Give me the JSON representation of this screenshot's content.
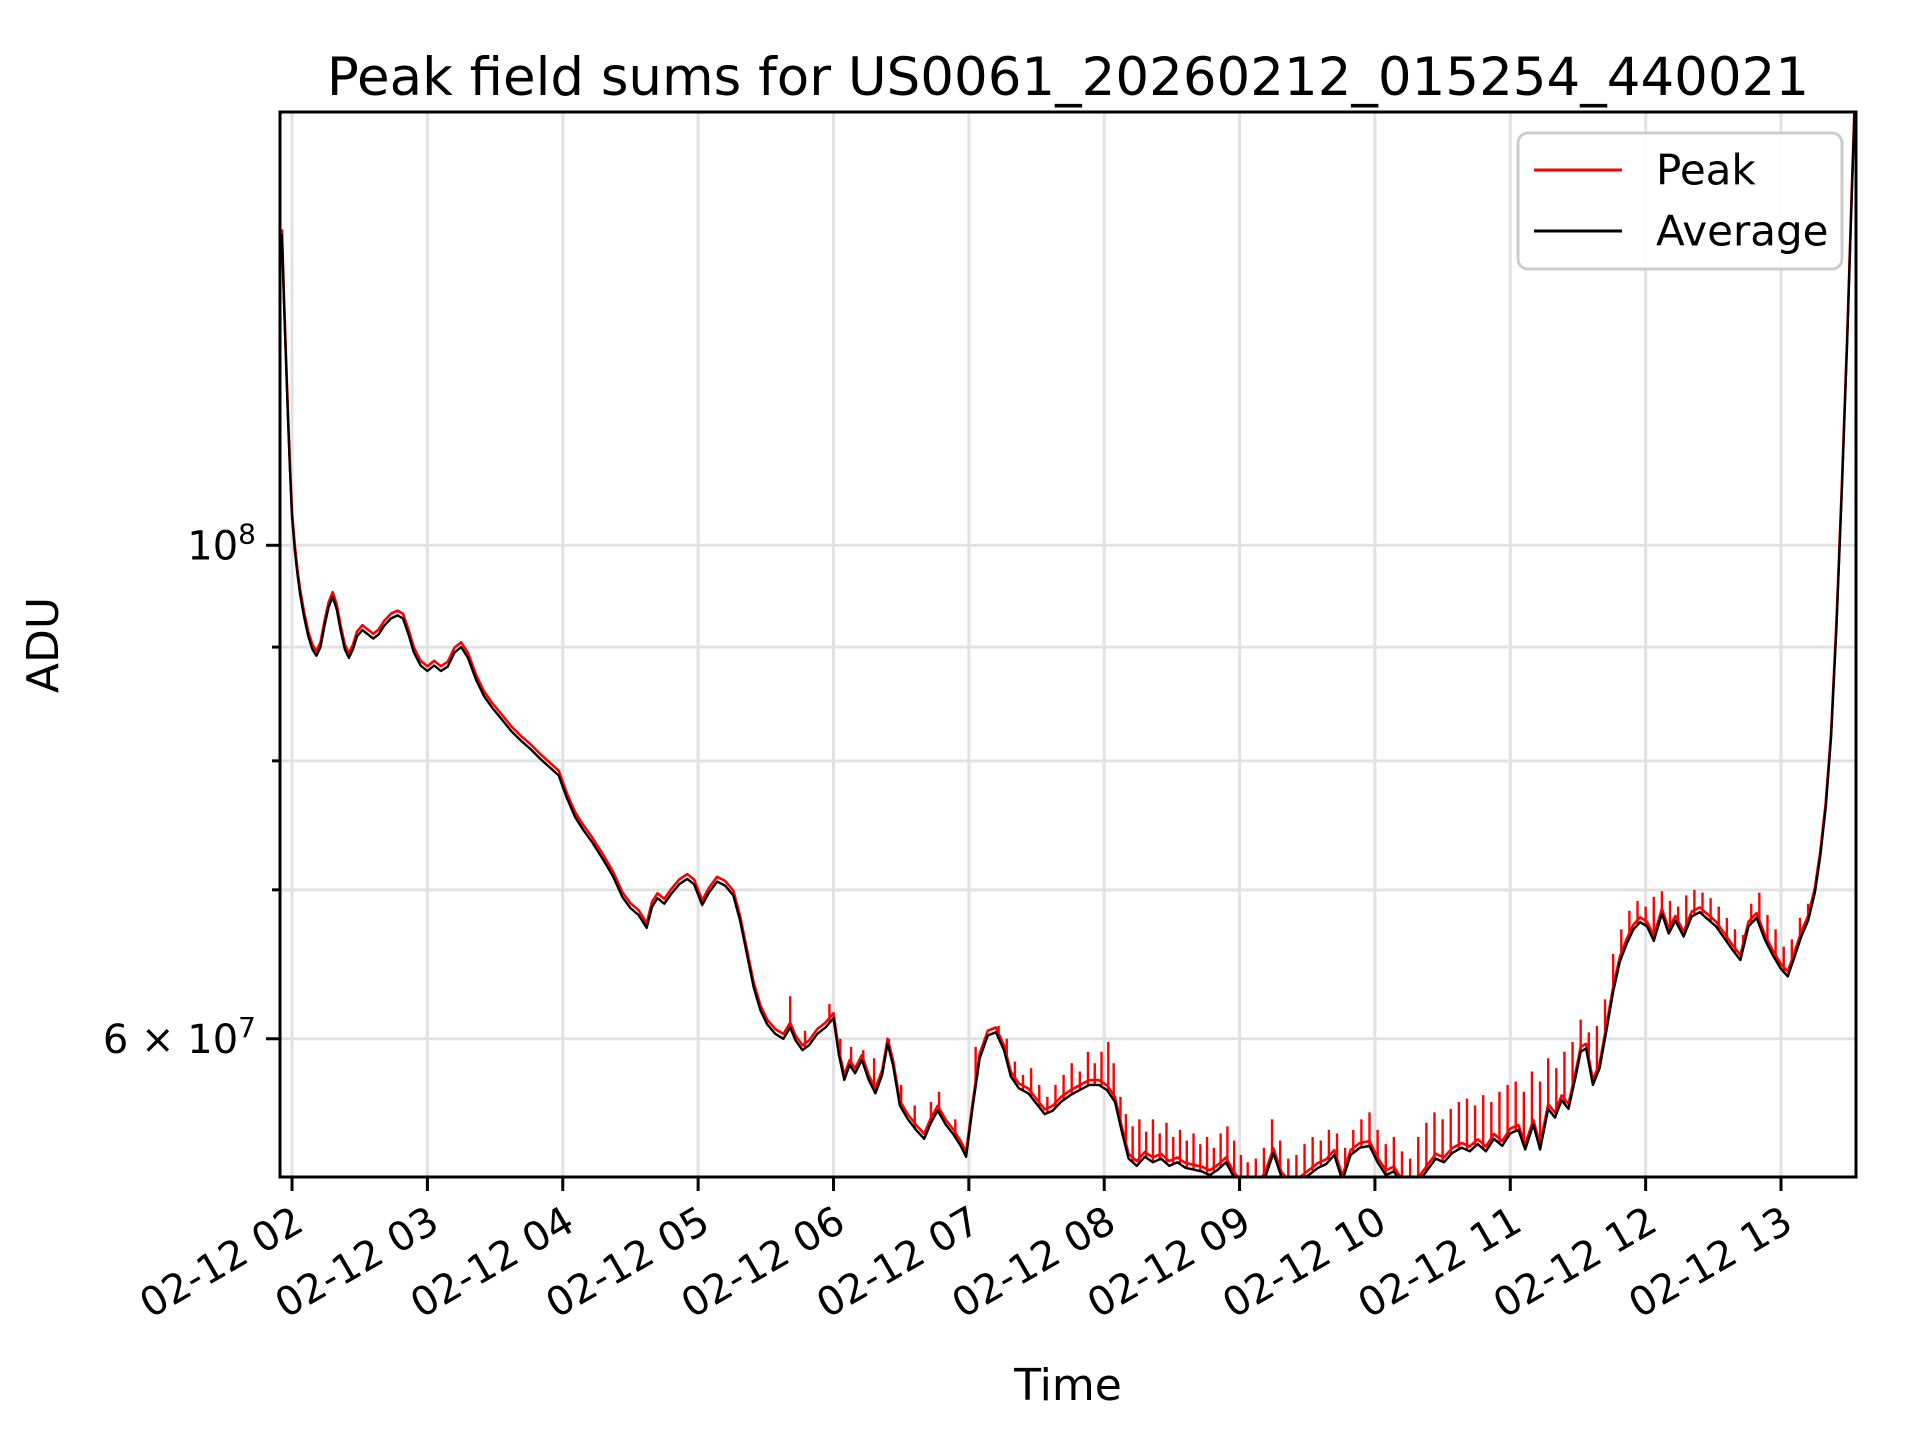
{
  "figure": {
    "background": "#ffffff",
    "grid_color": "#e2e2e2",
    "spine_color": "#000000",
    "legend_border_color": "#cccccc"
  },
  "chart_data": {
    "type": "line",
    "title": "Peak field sums for US0061_20260212_015254_440021",
    "xlabel": "Time",
    "ylabel": "ADU",
    "yscale": "log",
    "grid": true,
    "legend_position": "upper right",
    "legend": [
      {
        "label": "Peak",
        "color": "#ff0000"
      },
      {
        "label": "Average",
        "color": "#000000"
      }
    ],
    "xlim_hours": [
      1.911,
      13.554
    ],
    "ylim": [
      52000000,
      156600000
    ],
    "x_ticks": [
      {
        "t": 2,
        "label": "02-12 02"
      },
      {
        "t": 3,
        "label": "02-12 03"
      },
      {
        "t": 4,
        "label": "02-12 04"
      },
      {
        "t": 5,
        "label": "02-12 05"
      },
      {
        "t": 6,
        "label": "02-12 06"
      },
      {
        "t": 7,
        "label": "02-12 07"
      },
      {
        "t": 8,
        "label": "02-12 08"
      },
      {
        "t": 9,
        "label": "02-12 09"
      },
      {
        "t": 10,
        "label": "02-12 10"
      },
      {
        "t": 11,
        "label": "02-12 11"
      },
      {
        "t": 12,
        "label": "02-12 12"
      },
      {
        "t": 13,
        "label": "02-12 13"
      }
    ],
    "x_tick_rotation_deg": 30,
    "y_ticks_labeled": [
      {
        "value": 100000000,
        "base": "10",
        "exp": "8"
      },
      {
        "value": 60000000,
        "base": "6 × 10",
        "exp": "7"
      }
    ],
    "y_ticks_minor_unlabeled": [
      70000000,
      80000000,
      90000000
    ],
    "y_unit": 10000000,
    "x_hours": [
      1.925,
      1.94,
      1.955,
      1.97,
      1.985,
      2.0,
      2.02,
      2.04,
      2.06,
      2.09,
      2.12,
      2.15,
      2.18,
      2.21,
      2.24,
      2.27,
      2.3,
      2.33,
      2.36,
      2.39,
      2.42,
      2.45,
      2.48,
      2.52,
      2.56,
      2.6,
      2.64,
      2.68,
      2.73,
      2.78,
      2.82,
      2.86,
      2.9,
      2.95,
      3.0,
      3.05,
      3.1,
      3.15,
      3.2,
      3.25,
      3.3,
      3.36,
      3.42,
      3.48,
      3.55,
      3.62,
      3.69,
      3.76,
      3.83,
      3.9,
      3.97,
      4.03,
      4.09,
      4.15,
      4.22,
      4.3,
      4.37,
      4.44,
      4.5,
      4.56,
      4.62,
      4.66,
      4.7,
      4.75,
      4.8,
      4.86,
      4.92,
      4.97,
      5.03,
      5.08,
      5.14,
      5.2,
      5.26,
      5.31,
      5.36,
      5.41,
      5.46,
      5.51,
      5.57,
      5.63,
      5.68,
      5.72,
      5.77,
      5.82,
      5.88,
      5.94,
      6.0,
      6.04,
      6.08,
      6.12,
      6.16,
      6.21,
      6.26,
      6.31,
      6.36,
      6.4,
      6.44,
      6.49,
      6.55,
      6.61,
      6.67,
      6.72,
      6.77,
      6.83,
      6.89,
      6.94,
      6.98,
      7.03,
      7.08,
      7.14,
      7.2,
      7.26,
      7.31,
      7.37,
      7.44,
      7.5,
      7.56,
      7.62,
      7.68,
      7.75,
      7.82,
      7.89,
      7.96,
      8.02,
      8.08,
      8.13,
      8.18,
      8.24,
      8.3,
      8.36,
      8.42,
      8.48,
      8.54,
      8.6,
      8.66,
      8.72,
      8.78,
      8.84,
      8.9,
      8.95,
      9.01,
      9.07,
      9.13,
      9.19,
      9.25,
      9.31,
      9.37,
      9.44,
      9.51,
      9.58,
      9.64,
      9.7,
      9.76,
      9.82,
      9.89,
      9.96,
      10.02,
      10.08,
      10.14,
      10.2,
      10.27,
      10.33,
      10.39,
      10.45,
      10.51,
      10.57,
      10.64,
      10.7,
      10.76,
      10.82,
      10.88,
      10.94,
      11.0,
      11.06,
      11.11,
      11.17,
      11.22,
      11.28,
      11.33,
      11.38,
      11.43,
      11.48,
      11.52,
      11.56,
      11.61,
      11.66,
      11.71,
      11.76,
      11.81,
      11.86,
      11.91,
      11.96,
      12.01,
      12.06,
      12.12,
      12.17,
      12.22,
      12.28,
      12.34,
      12.4,
      12.46,
      12.52,
      12.58,
      12.64,
      12.7,
      12.76,
      12.82,
      12.88,
      12.94,
      13.0,
      13.05,
      13.1,
      13.15,
      13.2,
      13.25,
      13.29,
      13.33,
      13.37,
      13.41,
      13.45,
      13.49,
      13.52,
      13.545
    ],
    "average": [
      13.8,
      12.9,
      12.1,
      11.4,
      10.8,
      10.3,
      9.95,
      9.7,
      9.5,
      9.28,
      9.1,
      8.98,
      8.92,
      9.0,
      9.2,
      9.38,
      9.48,
      9.36,
      9.15,
      8.98,
      8.9,
      8.98,
      9.1,
      9.16,
      9.12,
      9.08,
      9.12,
      9.2,
      9.27,
      9.3,
      9.27,
      9.12,
      8.95,
      8.83,
      8.78,
      8.83,
      8.78,
      8.82,
      8.95,
      9.0,
      8.9,
      8.7,
      8.55,
      8.45,
      8.35,
      8.25,
      8.17,
      8.1,
      8.02,
      7.95,
      7.88,
      7.7,
      7.55,
      7.45,
      7.35,
      7.22,
      7.1,
      6.95,
      6.87,
      6.82,
      6.73,
      6.88,
      6.94,
      6.9,
      6.97,
      7.04,
      7.08,
      7.04,
      6.89,
      6.98,
      7.06,
      7.03,
      6.96,
      6.78,
      6.55,
      6.33,
      6.18,
      6.09,
      6.03,
      6.0,
      6.07,
      5.99,
      5.93,
      5.96,
      6.03,
      6.07,
      6.13,
      5.9,
      5.75,
      5.84,
      5.79,
      5.87,
      5.75,
      5.67,
      5.78,
      5.97,
      5.84,
      5.6,
      5.52,
      5.46,
      5.41,
      5.5,
      5.57,
      5.49,
      5.43,
      5.37,
      5.31,
      5.6,
      5.88,
      6.02,
      6.04,
      5.93,
      5.77,
      5.7,
      5.67,
      5.61,
      5.55,
      5.57,
      5.62,
      5.66,
      5.69,
      5.72,
      5.72,
      5.69,
      5.62,
      5.45,
      5.3,
      5.26,
      5.31,
      5.28,
      5.3,
      5.26,
      5.28,
      5.25,
      5.24,
      5.23,
      5.21,
      5.24,
      5.28,
      5.21,
      5.15,
      5.12,
      5.14,
      5.2,
      5.33,
      5.2,
      5.15,
      5.17,
      5.21,
      5.25,
      5.27,
      5.32,
      5.18,
      5.32,
      5.36,
      5.37,
      5.28,
      5.21,
      5.23,
      5.16,
      5.13,
      5.18,
      5.24,
      5.3,
      5.28,
      5.33,
      5.36,
      5.34,
      5.38,
      5.34,
      5.41,
      5.37,
      5.44,
      5.46,
      5.35,
      5.49,
      5.35,
      5.58,
      5.53,
      5.63,
      5.58,
      5.76,
      5.92,
      5.94,
      5.72,
      5.82,
      6.05,
      6.3,
      6.5,
      6.62,
      6.72,
      6.77,
      6.74,
      6.64,
      6.83,
      6.69,
      6.78,
      6.67,
      6.81,
      6.84,
      6.79,
      6.74,
      6.66,
      6.58,
      6.51,
      6.74,
      6.8,
      6.65,
      6.54,
      6.45,
      6.4,
      6.53,
      6.67,
      6.78,
      6.98,
      7.25,
      7.62,
      8.2,
      9.2,
      10.6,
      12.4,
      14.2,
      15.8
    ],
    "peak_offset_factor": 1.005,
    "peak_spikes": [
      [
        5.68,
        6.27
      ],
      [
        5.79,
        6.05
      ],
      [
        5.97,
        6.22
      ],
      [
        6.05,
        6.0
      ],
      [
        6.13,
        5.95
      ],
      [
        6.22,
        5.93
      ],
      [
        6.3,
        5.88
      ],
      [
        6.41,
        6.0
      ],
      [
        6.5,
        5.72
      ],
      [
        6.6,
        5.6
      ],
      [
        6.72,
        5.62
      ],
      [
        6.78,
        5.68
      ],
      [
        6.9,
        5.52
      ],
      [
        7.05,
        5.95
      ],
      [
        7.22,
        6.08
      ],
      [
        7.28,
        6.0
      ],
      [
        7.34,
        5.86
      ],
      [
        7.4,
        5.78
      ],
      [
        7.46,
        5.82
      ],
      [
        7.52,
        5.72
      ],
      [
        7.58,
        5.65
      ],
      [
        7.64,
        5.72
      ],
      [
        7.7,
        5.78
      ],
      [
        7.76,
        5.85
      ],
      [
        7.82,
        5.8
      ],
      [
        7.88,
        5.92
      ],
      [
        7.93,
        5.85
      ],
      [
        7.98,
        5.92
      ],
      [
        8.03,
        5.98
      ],
      [
        8.07,
        5.85
      ],
      [
        8.12,
        5.65
      ],
      [
        8.16,
        5.55
      ],
      [
        8.21,
        5.48
      ],
      [
        8.26,
        5.52
      ],
      [
        8.31,
        5.45
      ],
      [
        8.36,
        5.52
      ],
      [
        8.41,
        5.44
      ],
      [
        8.46,
        5.5
      ],
      [
        8.51,
        5.42
      ],
      [
        8.56,
        5.46
      ],
      [
        8.61,
        5.4
      ],
      [
        8.66,
        5.44
      ],
      [
        8.71,
        5.38
      ],
      [
        8.76,
        5.42
      ],
      [
        8.81,
        5.36
      ],
      [
        8.86,
        5.44
      ],
      [
        8.91,
        5.48
      ],
      [
        8.96,
        5.4
      ],
      [
        9.01,
        5.32
      ],
      [
        9.06,
        5.28
      ],
      [
        9.12,
        5.3
      ],
      [
        9.18,
        5.36
      ],
      [
        9.24,
        5.52
      ],
      [
        9.3,
        5.4
      ],
      [
        9.36,
        5.3
      ],
      [
        9.42,
        5.32
      ],
      [
        9.48,
        5.38
      ],
      [
        9.54,
        5.42
      ],
      [
        9.6,
        5.4
      ],
      [
        9.66,
        5.46
      ],
      [
        9.72,
        5.44
      ],
      [
        9.78,
        5.36
      ],
      [
        9.84,
        5.46
      ],
      [
        9.9,
        5.52
      ],
      [
        9.96,
        5.56
      ],
      [
        10.02,
        5.46
      ],
      [
        10.08,
        5.38
      ],
      [
        10.14,
        5.42
      ],
      [
        10.2,
        5.34
      ],
      [
        10.26,
        5.3
      ],
      [
        10.32,
        5.42
      ],
      [
        10.38,
        5.5
      ],
      [
        10.44,
        5.56
      ],
      [
        10.5,
        5.52
      ],
      [
        10.56,
        5.58
      ],
      [
        10.62,
        5.62
      ],
      [
        10.68,
        5.64
      ],
      [
        10.74,
        5.6
      ],
      [
        10.8,
        5.66
      ],
      [
        10.86,
        5.62
      ],
      [
        10.92,
        5.68
      ],
      [
        10.98,
        5.72
      ],
      [
        11.04,
        5.74
      ],
      [
        11.1,
        5.68
      ],
      [
        11.16,
        5.8
      ],
      [
        11.22,
        5.74
      ],
      [
        11.28,
        5.88
      ],
      [
        11.34,
        5.82
      ],
      [
        11.4,
        5.92
      ],
      [
        11.46,
        5.98
      ],
      [
        11.52,
        6.12
      ],
      [
        11.58,
        6.04
      ],
      [
        11.64,
        6.08
      ],
      [
        11.7,
        6.25
      ],
      [
        11.76,
        6.55
      ],
      [
        11.82,
        6.72
      ],
      [
        11.88,
        6.85
      ],
      [
        11.94,
        6.92
      ],
      [
        12.0,
        6.88
      ],
      [
        12.06,
        6.95
      ],
      [
        12.12,
        6.99
      ],
      [
        12.18,
        6.92
      ],
      [
        12.24,
        6.88
      ],
      [
        12.3,
        6.96
      ],
      [
        12.36,
        7.0
      ],
      [
        12.42,
        6.98
      ],
      [
        12.48,
        6.94
      ],
      [
        12.54,
        6.88
      ],
      [
        12.6,
        6.8
      ],
      [
        12.66,
        6.72
      ],
      [
        12.72,
        6.68
      ],
      [
        12.78,
        6.9
      ],
      [
        12.84,
        6.98
      ],
      [
        12.9,
        6.82
      ],
      [
        12.96,
        6.72
      ],
      [
        13.02,
        6.6
      ],
      [
        13.08,
        6.65
      ],
      [
        13.14,
        6.8
      ],
      [
        13.2,
        6.9
      ],
      [
        13.26,
        7.1
      ]
    ]
  }
}
